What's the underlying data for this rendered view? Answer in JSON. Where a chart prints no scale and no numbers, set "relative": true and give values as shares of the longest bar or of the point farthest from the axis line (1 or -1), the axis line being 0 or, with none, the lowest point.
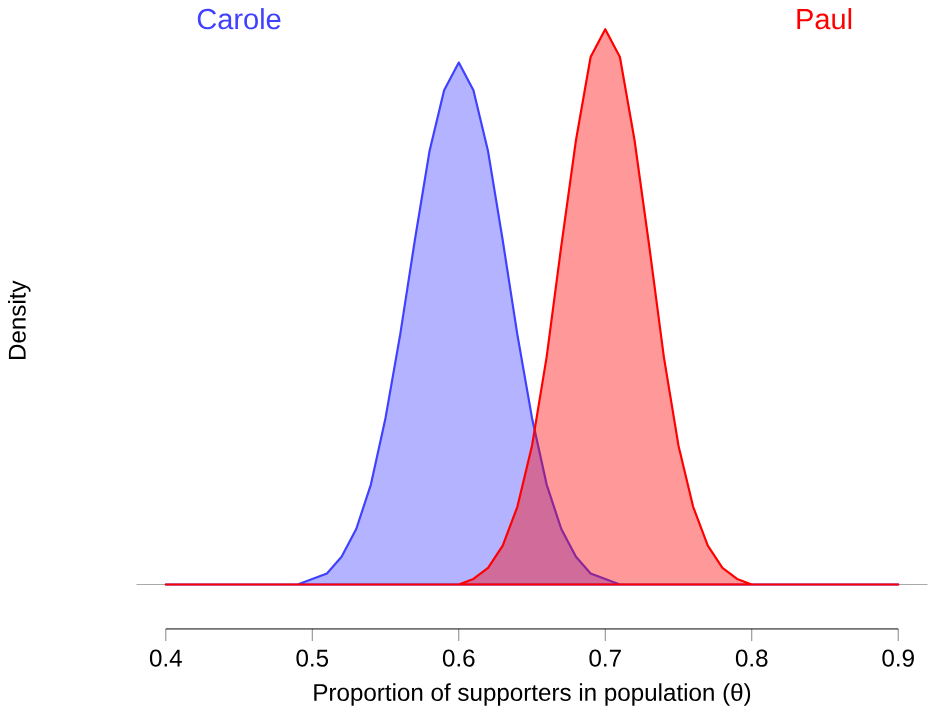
{
  "chart_data": {
    "type": "area",
    "relative": true,
    "xlabel": "Proportion of supporters in population (θ)",
    "ylabel": "Density",
    "xlim": [
      0.4,
      0.9
    ],
    "xticks": [
      0.4,
      0.5,
      0.6,
      0.7,
      0.8,
      0.9
    ],
    "tick_labels": "x",
    "x": [
      0.4,
      0.41,
      0.42,
      0.43,
      0.44,
      0.45,
      0.46,
      0.47,
      0.48,
      0.49,
      0.5,
      0.51,
      0.52,
      0.53,
      0.54,
      0.55,
      0.56,
      0.57,
      0.58,
      0.59,
      0.6,
      0.61,
      0.62,
      0.63,
      0.64,
      0.65,
      0.66,
      0.67,
      0.68,
      0.69,
      0.7,
      0.71,
      0.72,
      0.73,
      0.74,
      0.75,
      0.76,
      0.77,
      0.78,
      0.79,
      0.8,
      0.81,
      0.82,
      0.83,
      0.84,
      0.85,
      0.86,
      0.87,
      0.88,
      0.89,
      0.9
    ],
    "series": [
      {
        "name": "Carole",
        "color": "#4040ff",
        "values": [
          0,
          0,
          0,
          0,
          0,
          0,
          0,
          0,
          0,
          0,
          0.01,
          0.02,
          0.05,
          0.1,
          0.18,
          0.3,
          0.45,
          0.62,
          0.78,
          0.89,
          0.94,
          0.89,
          0.78,
          0.62,
          0.45,
          0.3,
          0.18,
          0.1,
          0.05,
          0.02,
          0.01,
          0,
          0,
          0,
          0,
          0,
          0,
          0,
          0,
          0,
          0,
          0,
          0,
          0,
          0,
          0,
          0,
          0,
          0,
          0,
          0
        ]
      },
      {
        "name": "Paul",
        "color": "#ff0000",
        "values": [
          0,
          0,
          0,
          0,
          0,
          0,
          0,
          0,
          0,
          0,
          0,
          0,
          0,
          0,
          0,
          0,
          0,
          0,
          0,
          0,
          0,
          0.01,
          0.03,
          0.07,
          0.14,
          0.25,
          0.41,
          0.61,
          0.8,
          0.95,
          1,
          0.95,
          0.8,
          0.61,
          0.41,
          0.25,
          0.14,
          0.07,
          0.03,
          0.01,
          0,
          0,
          0,
          0,
          0,
          0,
          0,
          0,
          0,
          0,
          0
        ]
      }
    ]
  }
}
